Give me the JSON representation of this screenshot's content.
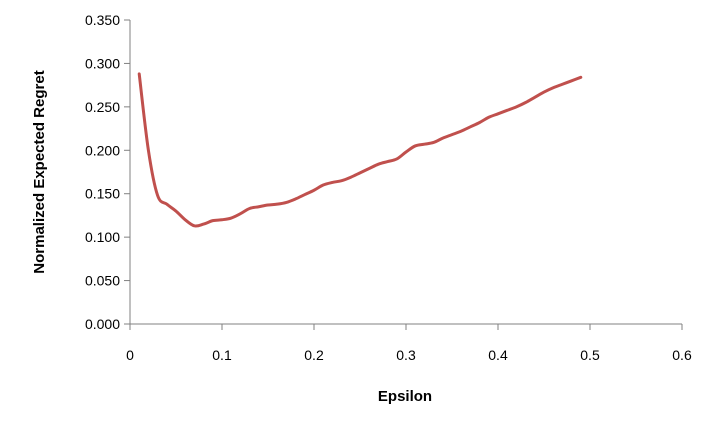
{
  "chart_data": {
    "type": "line",
    "title": "",
    "xlabel": "Epsilon",
    "ylabel": "Normalized Expected Regret",
    "xlim": [
      0,
      0.6
    ],
    "ylim": [
      0,
      0.35
    ],
    "x_ticks": [
      "0",
      "0.1",
      "0.2",
      "0.3",
      "0.4",
      "0.5",
      "0.6"
    ],
    "y_ticks": [
      "0.000",
      "0.050",
      "0.100",
      "0.150",
      "0.200",
      "0.250",
      "0.300",
      "0.350"
    ],
    "grid": false,
    "legend": "none",
    "series": [
      {
        "color": "#c0504d",
        "x": [
          0.01,
          0.02,
          0.03,
          0.04,
          0.05,
          0.06,
          0.07,
          0.08,
          0.09,
          0.1,
          0.11,
          0.12,
          0.13,
          0.14,
          0.15,
          0.16,
          0.17,
          0.18,
          0.19,
          0.2,
          0.21,
          0.22,
          0.23,
          0.24,
          0.25,
          0.26,
          0.27,
          0.28,
          0.29,
          0.3,
          0.31,
          0.32,
          0.33,
          0.34,
          0.35,
          0.36,
          0.37,
          0.38,
          0.39,
          0.4,
          0.41,
          0.42,
          0.43,
          0.44,
          0.45,
          0.46,
          0.47,
          0.48,
          0.49
        ],
        "y": [
          0.288,
          0.2,
          0.148,
          0.138,
          0.13,
          0.12,
          0.113,
          0.115,
          0.119,
          0.12,
          0.122,
          0.127,
          0.133,
          0.135,
          0.137,
          0.138,
          0.14,
          0.144,
          0.149,
          0.154,
          0.16,
          0.163,
          0.165,
          0.169,
          0.174,
          0.179,
          0.184,
          0.187,
          0.19,
          0.198,
          0.205,
          0.207,
          0.209,
          0.214,
          0.218,
          0.222,
          0.227,
          0.232,
          0.238,
          0.242,
          0.246,
          0.25,
          0.255,
          0.261,
          0.267,
          0.272,
          0.276,
          0.28,
          0.284
        ]
      }
    ]
  }
}
